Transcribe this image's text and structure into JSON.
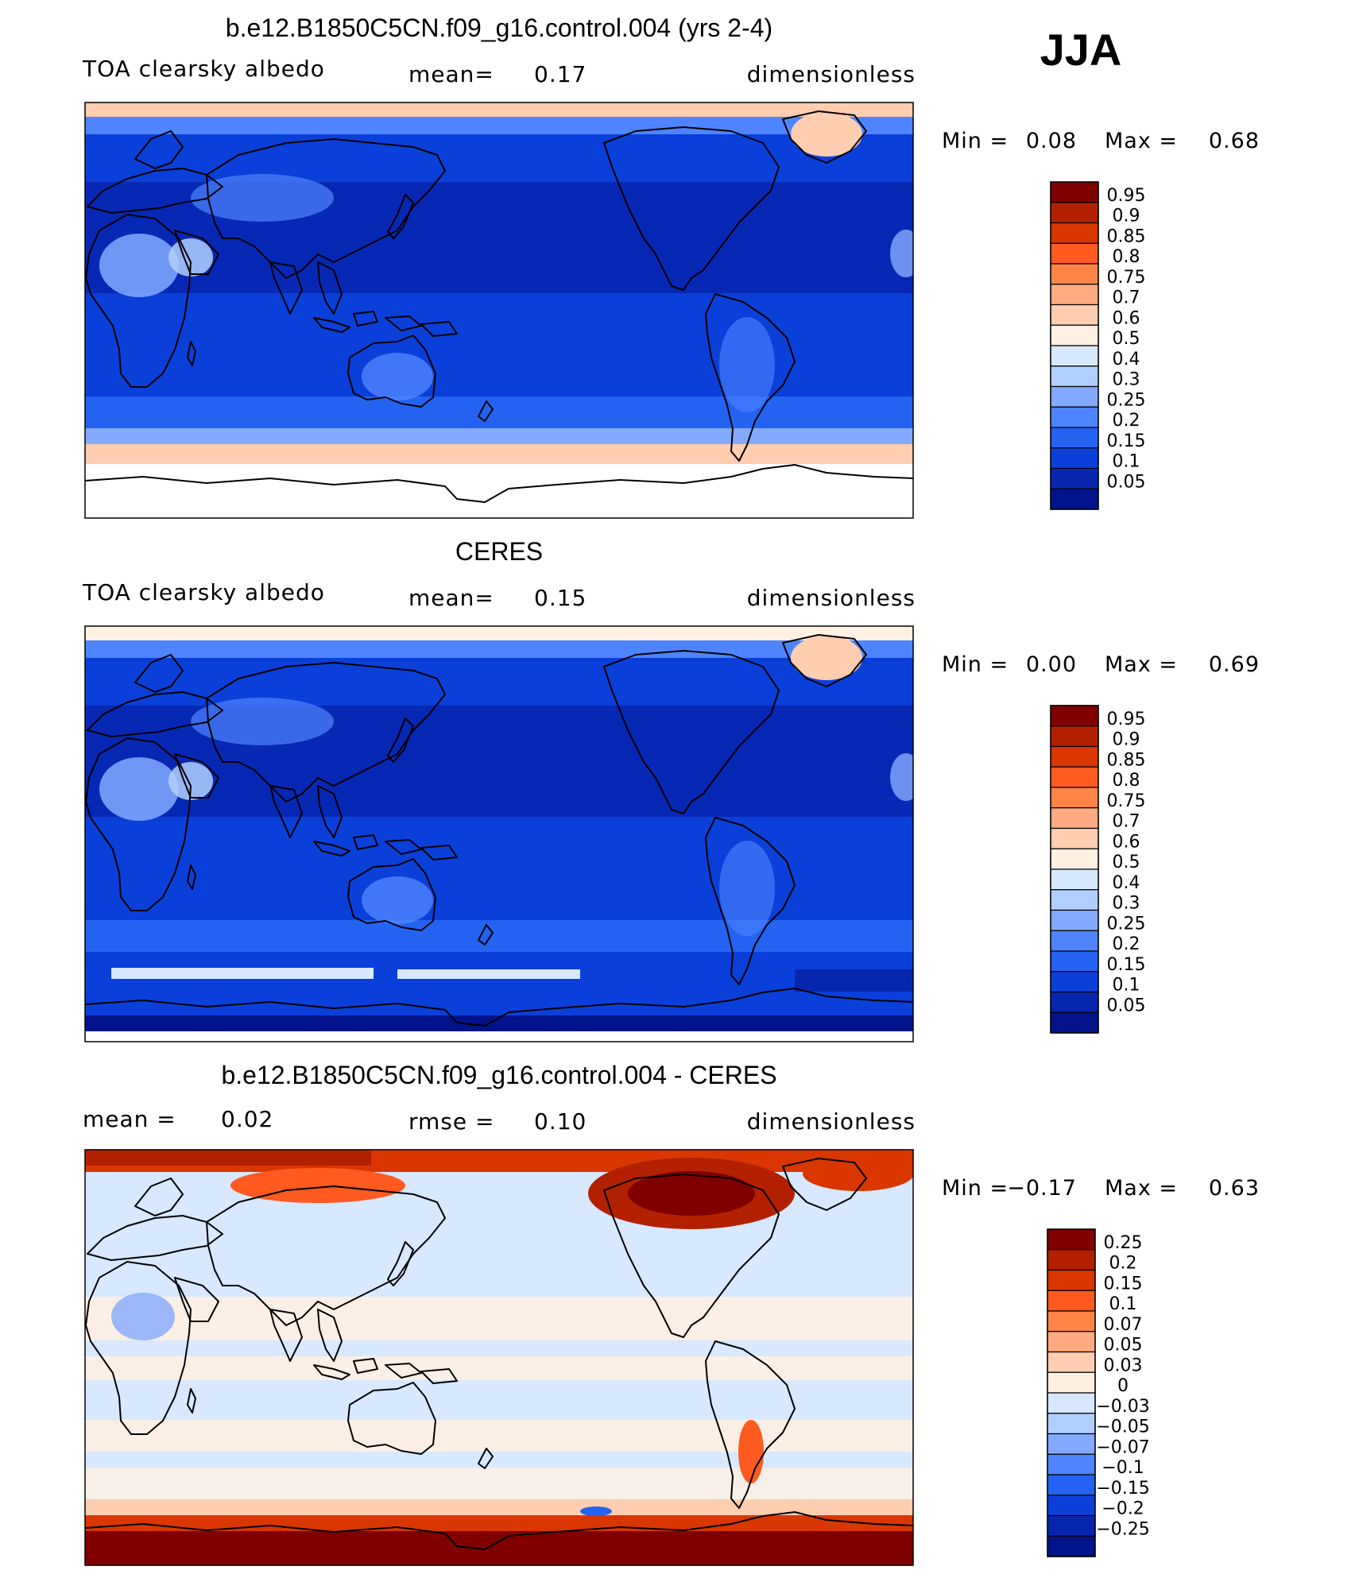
{
  "season": "JJA",
  "panels": [
    {
      "title": "b.e12.B1850C5CN.f09_g16.control.004 (yrs 2-4)",
      "left_label": "TOA clearsky albedo",
      "center_label": "mean=",
      "center_value": "0.17",
      "right_label": "dimensionless",
      "min_label": "Min =",
      "min_value": "0.08",
      "max_label": "Max =",
      "max_value": "0.68",
      "colorbar_levels": [
        "0.95",
        "0.9",
        "0.85",
        "0.8",
        "0.75",
        "0.7",
        "0.6",
        "0.5",
        "0.4",
        "0.3",
        "0.25",
        "0.2",
        "0.15",
        "0.1",
        "0.05"
      ],
      "colorbar_colors": [
        "#800000",
        "#b32000",
        "#d93600",
        "#ff5a1f",
        "#ff8547",
        "#ffaa80",
        "#ffcdb0",
        "#fff0e2",
        "#d7e8ff",
        "#b0cfff",
        "#84aaff",
        "#4f84ff",
        "#2463f2",
        "#0a3fd9",
        "#0726b0",
        "#00138a"
      ],
      "map_style": "model"
    },
    {
      "title": "CERES",
      "left_label": "TOA clearsky albedo",
      "center_label": "mean=",
      "center_value": "0.15",
      "right_label": "dimensionless",
      "min_label": "Min =",
      "min_value": "0.00",
      "max_label": "Max =",
      "max_value": "0.69",
      "colorbar_levels": [
        "0.95",
        "0.9",
        "0.85",
        "0.8",
        "0.75",
        "0.7",
        "0.6",
        "0.5",
        "0.4",
        "0.3",
        "0.25",
        "0.2",
        "0.15",
        "0.1",
        "0.05"
      ],
      "colorbar_colors": [
        "#800000",
        "#b32000",
        "#d93600",
        "#ff5a1f",
        "#ff8547",
        "#ffaa80",
        "#ffcdb0",
        "#fff0e2",
        "#d7e8ff",
        "#b0cfff",
        "#84aaff",
        "#4f84ff",
        "#2463f2",
        "#0a3fd9",
        "#0726b0",
        "#00138a"
      ],
      "map_style": "obs"
    },
    {
      "title": "b.e12.B1850C5CN.f09_g16.control.004 - CERES",
      "left_label": "mean =",
      "left_value": "0.02",
      "center_label": "rmse =",
      "center_value": "0.10",
      "right_label": "dimensionless",
      "min_label": "Min =",
      "min_value": "−0.17",
      "max_label": "Max =",
      "max_value": "0.63",
      "colorbar_levels": [
        "0.25",
        "0.2",
        "0.15",
        "0.1",
        "0.07",
        "0.05",
        "0.03",
        "0",
        "−0.03",
        "−0.05",
        "−0.07",
        "−0.1",
        "−0.15",
        "−0.2",
        "−0.25"
      ],
      "colorbar_colors": [
        "#800000",
        "#b32000",
        "#d93600",
        "#ff5a1f",
        "#ff8547",
        "#ffaa80",
        "#ffcdb0",
        "#fff0e2",
        "#d7e8ff",
        "#b0cfff",
        "#84aaff",
        "#4f84ff",
        "#2463f2",
        "#0a3fd9",
        "#0726b0",
        "#00138a"
      ],
      "map_style": "diff"
    }
  ]
}
